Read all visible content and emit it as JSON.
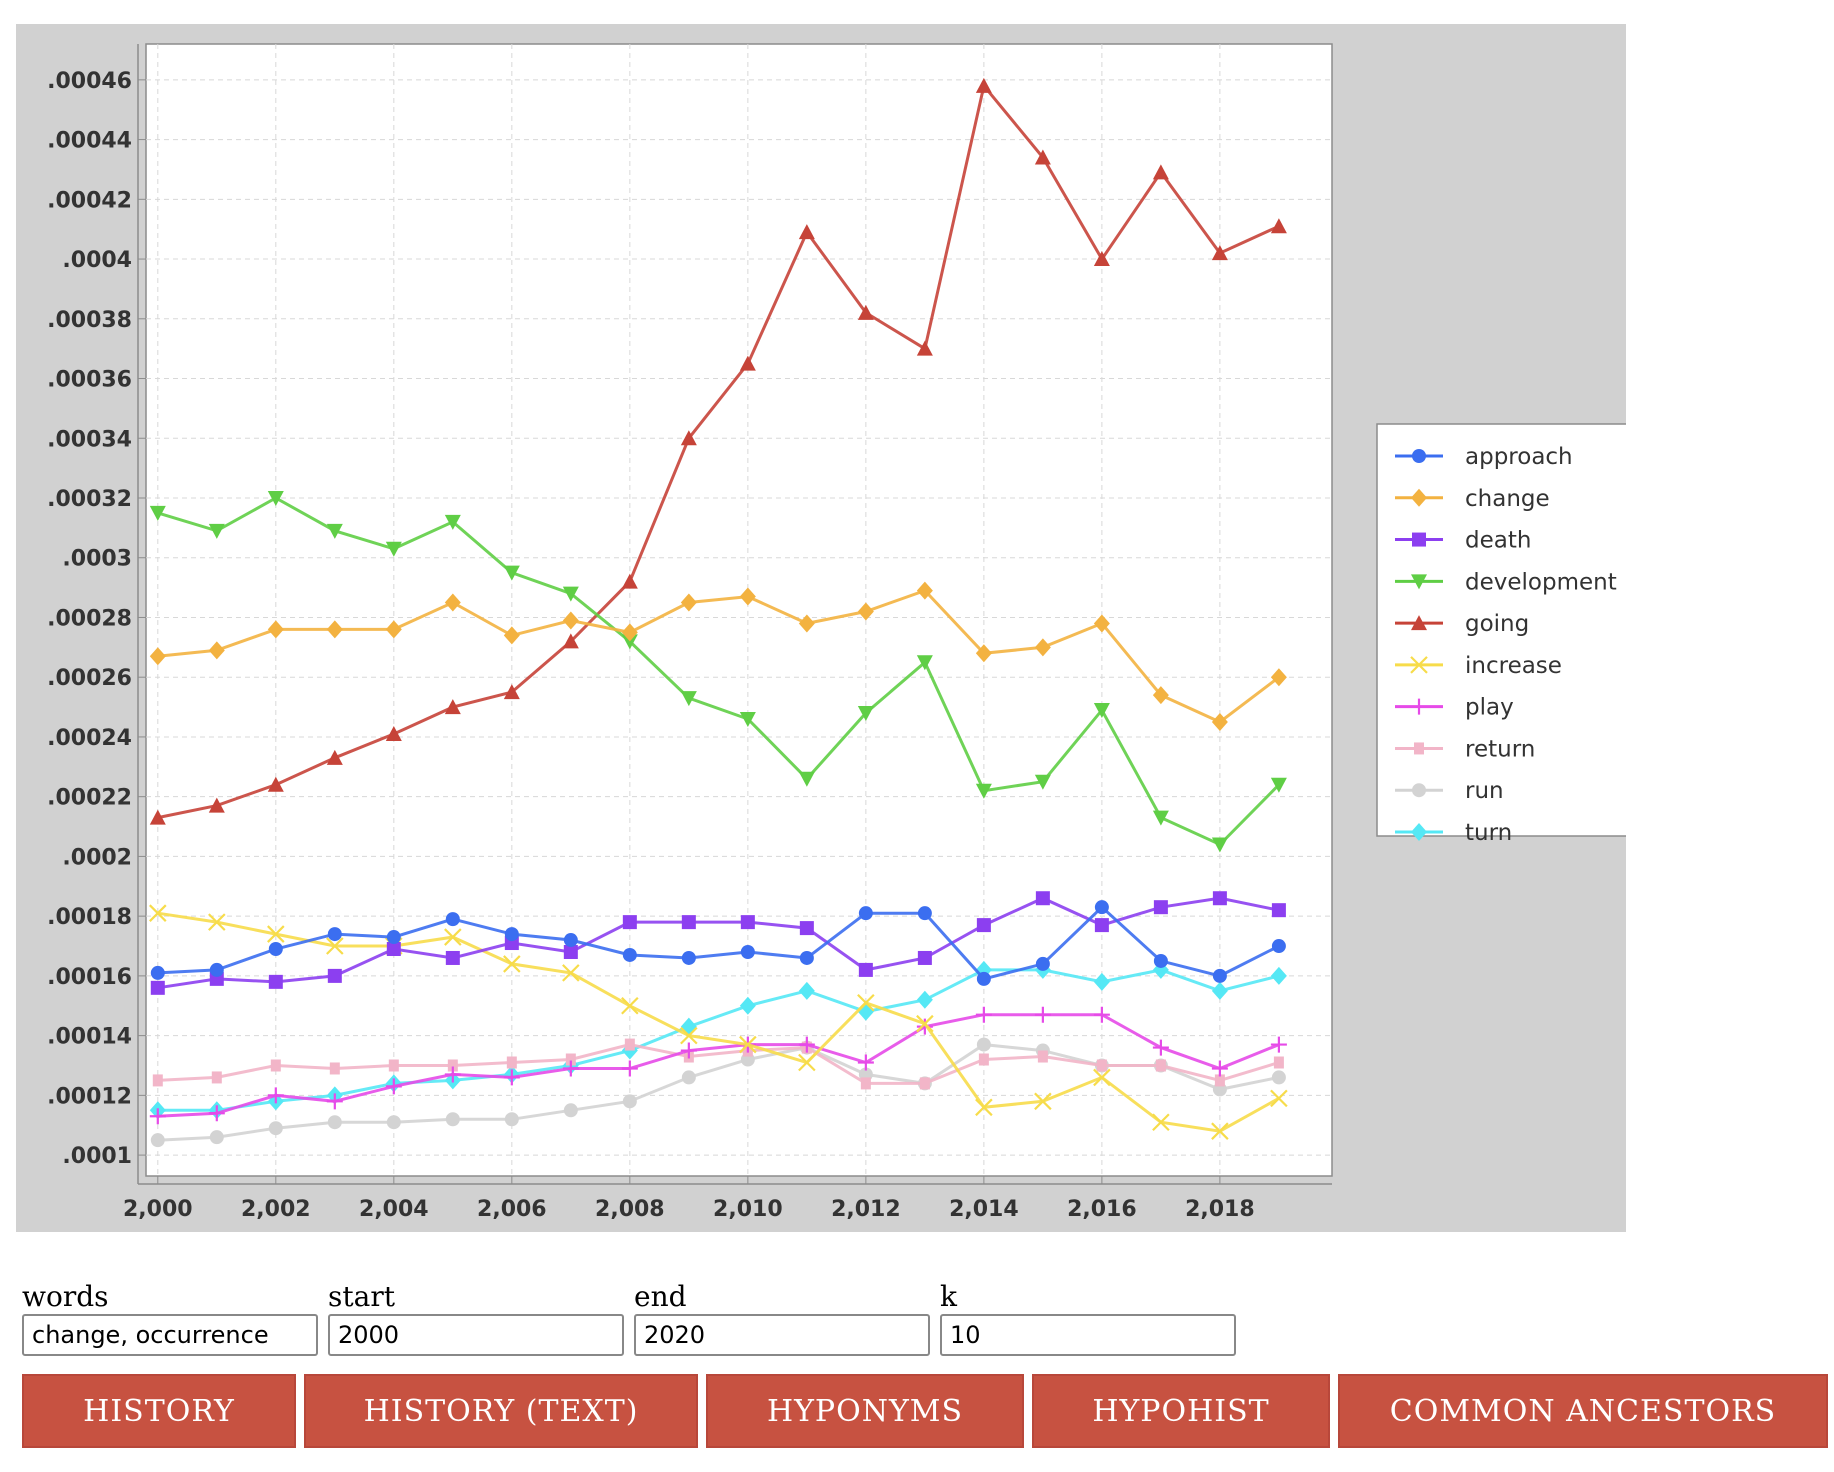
{
  "chart_data": {
    "type": "line",
    "title": "",
    "xlabel": "",
    "ylabel": "",
    "xlim": [
      1999.8,
      2019.9
    ],
    "ylim": [
      9.3e-05,
      0.000472
    ],
    "x_ticks": [
      2000,
      2002,
      2004,
      2006,
      2008,
      2010,
      2012,
      2014,
      2016,
      2018
    ],
    "x_tick_labels": [
      "2,000",
      "2,002",
      "2,004",
      "2,006",
      "2,008",
      "2,010",
      "2,012",
      "2,014",
      "2,016",
      "2,018"
    ],
    "y_ticks": [
      0.0001,
      0.00012,
      0.00014,
      0.00016,
      0.00018,
      0.0002,
      0.00022,
      0.00024,
      0.00026,
      0.00028,
      0.0003,
      0.00032,
      0.00034,
      0.00036,
      0.00038,
      0.0004,
      0.00042,
      0.00044,
      0.00046
    ],
    "y_tick_labels": [
      ".0001",
      ".00012",
      ".00014",
      ".00016",
      ".00018",
      ".0002",
      ".00022",
      ".00024",
      ".00026",
      ".00028",
      ".0003",
      ".00032",
      ".00034",
      ".00036",
      ".00038",
      ".0004",
      ".00042",
      ".00044",
      ".00046"
    ],
    "grid": true,
    "legend_position": "right",
    "x": [
      2000,
      2001,
      2002,
      2003,
      2004,
      2005,
      2006,
      2007,
      2008,
      2009,
      2010,
      2011,
      2012,
      2013,
      2014,
      2015,
      2016,
      2017,
      2018,
      2019
    ],
    "series": [
      {
        "name": "approach",
        "color": "#3b6ef0",
        "marker": "circle",
        "values": [
          0.000161,
          0.000162,
          0.000169,
          0.000174,
          0.000173,
          0.000179,
          0.000174,
          0.000172,
          0.000167,
          0.000166,
          0.000168,
          0.000166,
          0.000181,
          0.000181,
          0.000159,
          0.000164,
          0.000183,
          0.000165,
          0.00016,
          0.00017
        ]
      },
      {
        "name": "change",
        "color": "#f3b240",
        "marker": "diamond",
        "values": [
          0.000267,
          0.000269,
          0.000276,
          0.000276,
          0.000276,
          0.000285,
          0.000274,
          0.000279,
          0.000275,
          0.000285,
          0.000287,
          0.000278,
          0.000282,
          0.000289,
          0.000268,
          0.00027,
          0.000278,
          0.000254,
          0.000245,
          0.00026
        ]
      },
      {
        "name": "death",
        "color": "#8c3ff0",
        "marker": "square",
        "values": [
          0.000156,
          0.000159,
          0.000158,
          0.00016,
          0.000169,
          0.000166,
          0.000171,
          0.000168,
          0.000178,
          0.000178,
          0.000178,
          0.000176,
          0.000162,
          0.000166,
          0.000177,
          0.000186,
          0.000177,
          0.000183,
          0.000186,
          0.000182
        ]
      },
      {
        "name": "development",
        "color": "#5fce45",
        "marker": "triangle-down",
        "values": [
          0.000315,
          0.000309,
          0.00032,
          0.000309,
          0.000303,
          0.000312,
          0.000295,
          0.000288,
          0.000272,
          0.000253,
          0.000246,
          0.000226,
          0.000248,
          0.000265,
          0.000222,
          0.000225,
          0.000249,
          0.000213,
          0.000204,
          0.000224
        ]
      },
      {
        "name": "going",
        "color": "#c64338",
        "marker": "triangle-up",
        "values": [
          0.000213,
          0.000217,
          0.000224,
          0.000233,
          0.000241,
          0.00025,
          0.000255,
          0.000272,
          0.000292,
          0.00034,
          0.000365,
          0.000409,
          0.000382,
          0.00037,
          0.000458,
          0.000434,
          0.0004,
          0.000429,
          0.000402,
          0.000411
        ]
      },
      {
        "name": "increase",
        "color": "#f7dc4a",
        "marker": "x",
        "values": [
          0.000181,
          0.000178,
          0.000174,
          0.00017,
          0.00017,
          0.000173,
          0.000164,
          0.000161,
          0.00015,
          0.00014,
          0.000137,
          0.000131,
          0.000151,
          0.000144,
          0.000116,
          0.000118,
          0.000126,
          0.000111,
          0.000108,
          0.000119
        ]
      },
      {
        "name": "play",
        "color": "#e64ae8",
        "marker": "plus",
        "values": [
          0.000113,
          0.000114,
          0.00012,
          0.000118,
          0.000123,
          0.000127,
          0.000126,
          0.000129,
          0.000129,
          0.000135,
          0.000137,
          0.000137,
          0.000131,
          0.000143,
          0.000147,
          0.000147,
          0.000147,
          0.000136,
          0.000129,
          0.000137
        ]
      },
      {
        "name": "return",
        "color": "#f2b5c8",
        "marker": "square-small",
        "values": [
          0.000125,
          0.000126,
          0.00013,
          0.000129,
          0.00013,
          0.00013,
          0.000131,
          0.000132,
          0.000137,
          0.000133,
          0.000135,
          0.000136,
          0.000124,
          0.000124,
          0.000132,
          0.000133,
          0.00013,
          0.00013,
          0.000125,
          0.000131
        ]
      },
      {
        "name": "run",
        "color": "#d3d3d3",
        "marker": "circle",
        "values": [
          0.000105,
          0.000106,
          0.000109,
          0.000111,
          0.000111,
          0.000112,
          0.000112,
          0.000115,
          0.000118,
          0.000126,
          0.000132,
          0.000136,
          0.000127,
          0.000124,
          0.000137,
          0.000135,
          0.00013,
          0.00013,
          0.000122,
          0.000126
        ]
      },
      {
        "name": "turn",
        "color": "#55e8f5",
        "marker": "diamond",
        "values": [
          0.000115,
          0.000115,
          0.000118,
          0.00012,
          0.000124,
          0.000125,
          0.000127,
          0.00013,
          0.000135,
          0.000143,
          0.00015,
          0.000155,
          0.000148,
          0.000152,
          0.000162,
          0.000162,
          0.000158,
          0.000162,
          0.000155,
          0.00016
        ]
      }
    ]
  },
  "form": {
    "words_label": "words",
    "words_value": "change, occurrence",
    "start_label": "start",
    "start_value": "2000",
    "end_label": "end",
    "end_value": "2020",
    "k_label": "k",
    "k_value": "10"
  },
  "buttons": {
    "history": "HISTORY",
    "history_text": "HISTORY (TEXT)",
    "hyponyms": "HYPONYMS",
    "hypohist": "HYPOHIST",
    "common_ancestors": "COMMON ANCESTORS"
  }
}
